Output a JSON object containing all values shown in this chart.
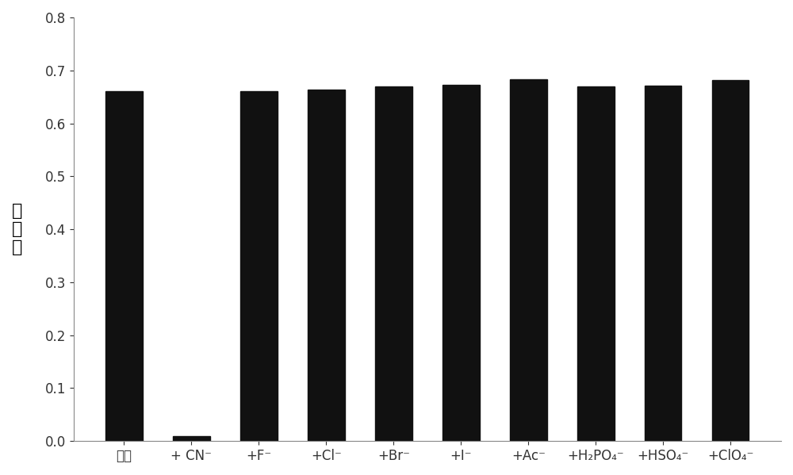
{
  "categories": [
    "主体",
    "+ CN⁻",
    "+F⁻",
    "+Cl⁻",
    "+Br⁻",
    "+I⁻",
    "+Ac⁻",
    "+H₂PO₄⁻",
    "+HSO₄⁻",
    "+ClO₄⁻"
  ],
  "values": [
    0.66,
    0.01,
    0.66,
    0.663,
    0.67,
    0.672,
    0.683,
    0.67,
    0.671,
    0.681
  ],
  "bar_color": "#111111",
  "ylabel": "吸\n光\n度",
  "ylim": [
    0,
    0.8
  ],
  "yticks": [
    0.0,
    0.1,
    0.2,
    0.3,
    0.4,
    0.5,
    0.6,
    0.7,
    0.8
  ],
  "bar_width": 0.55,
  "tick_fontsize": 12,
  "ylabel_fontsize": 16,
  "background_color": "#ffffff"
}
